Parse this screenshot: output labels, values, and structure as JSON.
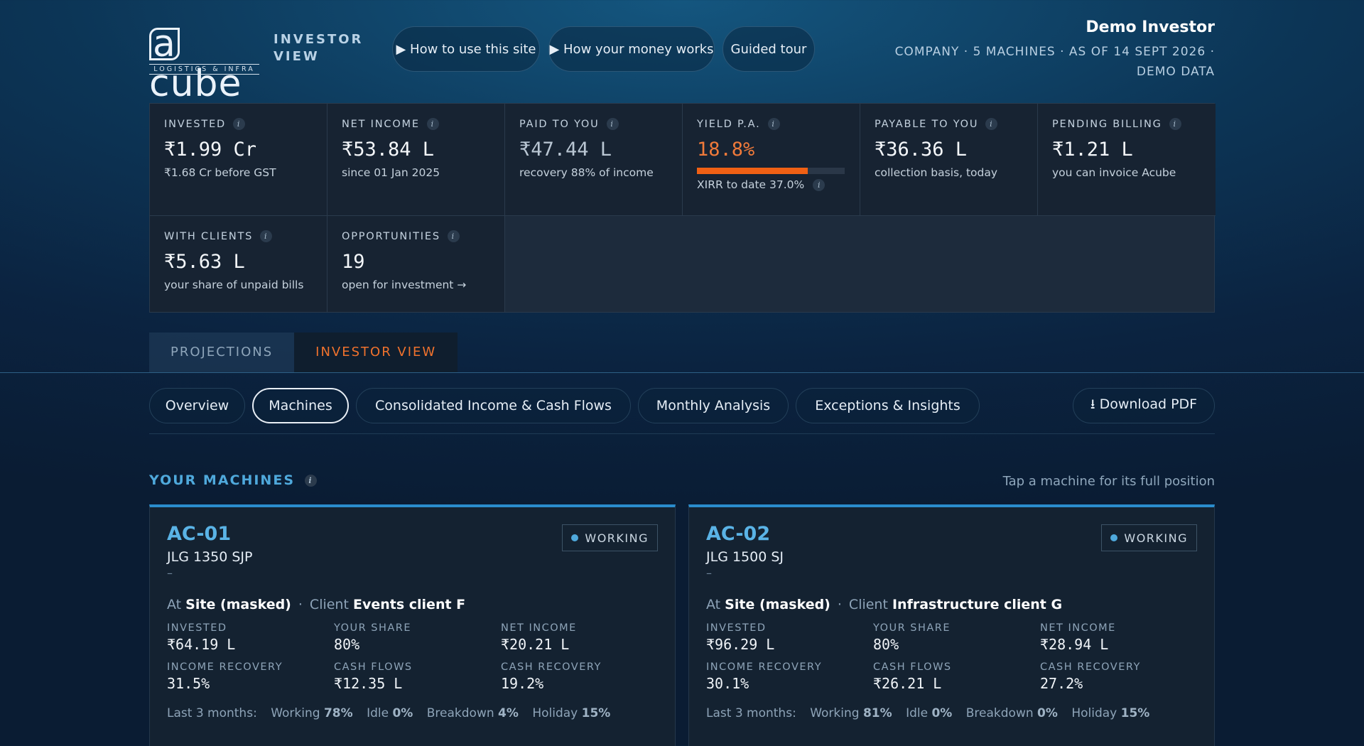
{
  "brand": {
    "logo_text": "acube",
    "logo_tagline": "LOGISTICS & INFRA",
    "subtitle": "INVESTOR VIEW"
  },
  "header_buttons": [
    {
      "label": "▶ How to use this site"
    },
    {
      "label": "▶ How your money works"
    },
    {
      "label": "Guided tour"
    }
  ],
  "investor": {
    "name": "Demo Investor",
    "meta": "COMPANY · 5 MACHINES · AS OF 14 SEPT 2026 · DEMO DATA"
  },
  "stats": {
    "invested": {
      "label": "INVESTED",
      "value": "₹1.99 Cr",
      "sub": "₹1.68 Cr before GST"
    },
    "net_income": {
      "label": "NET INCOME",
      "value": "₹53.84 L",
      "sub": "since 01 Jan 2025"
    },
    "paid": {
      "label": "PAID TO YOU",
      "value": "₹47.44 L",
      "sub": "recovery 88% of income"
    },
    "yield": {
      "label": "YIELD P.A.",
      "value": "18.8%",
      "progress": 0.75,
      "xirr": "XIRR to date 37.0%"
    },
    "payable": {
      "label": "PAYABLE TO YOU",
      "value": "₹36.36 L",
      "sub": "collection basis, today"
    },
    "pending": {
      "label": "PENDING BILLING",
      "value": "₹1.21 L",
      "sub": "you can invoice Acube"
    },
    "with_clients": {
      "label": "WITH CLIENTS",
      "value": "₹5.63 L",
      "sub": "your share of unpaid bills"
    },
    "opportunities": {
      "label": "OPPORTUNITIES",
      "value": "19",
      "sub": "open for investment →"
    }
  },
  "top_tabs": [
    {
      "label": "PROJECTIONS"
    },
    {
      "label": "INVESTOR VIEW",
      "active": true
    }
  ],
  "sub_tabs": [
    {
      "label": "Overview"
    },
    {
      "label": "Machines",
      "active": true
    },
    {
      "label": "Consolidated Income & Cash Flows"
    },
    {
      "label": "Monthly Analysis"
    },
    {
      "label": "Exceptions & Insights"
    }
  ],
  "download_label": "⭳ Download PDF",
  "machines_section": {
    "title": "YOUR MACHINES",
    "hint": "Tap a machine for its full position"
  },
  "machines": [
    {
      "code": "AC-01",
      "model": "JLG 1350 SJP",
      "dash": "–",
      "status": "WORKING",
      "at_label": "At",
      "site": "Site (masked)",
      "client_label": "Client",
      "client": "Events client F",
      "metrics": [
        {
          "label": "INVESTED",
          "value": "₹64.19 L"
        },
        {
          "label": "YOUR SHARE",
          "value": "80%"
        },
        {
          "label": "NET INCOME",
          "value": "₹20.21 L"
        },
        {
          "label": "INCOME RECOVERY",
          "value": "31.5%"
        },
        {
          "label": "CASH FLOWS",
          "value": "₹12.35 L"
        },
        {
          "label": "CASH RECOVERY",
          "value": "19.2%"
        }
      ],
      "last3_label": "Last 3 months:",
      "last3": [
        {
          "k": "Working",
          "v": "78%"
        },
        {
          "k": "Idle",
          "v": "0%"
        },
        {
          "k": "Breakdown",
          "v": "4%"
        },
        {
          "k": "Holiday",
          "v": "15%"
        }
      ]
    },
    {
      "code": "AC-02",
      "model": "JLG 1500 SJ",
      "dash": "–",
      "status": "WORKING",
      "at_label": "At",
      "site": "Site (masked)",
      "client_label": "Client",
      "client": "Infrastructure client G",
      "metrics": [
        {
          "label": "INVESTED",
          "value": "₹96.29 L"
        },
        {
          "label": "YOUR SHARE",
          "value": "80%"
        },
        {
          "label": "NET INCOME",
          "value": "₹28.94 L"
        },
        {
          "label": "INCOME RECOVERY",
          "value": "30.1%"
        },
        {
          "label": "CASH FLOWS",
          "value": "₹26.21 L"
        },
        {
          "label": "CASH RECOVERY",
          "value": "27.2%"
        }
      ],
      "last3_label": "Last 3 months:",
      "last3": [
        {
          "k": "Working",
          "v": "81%"
        },
        {
          "k": "Idle",
          "v": "0%"
        },
        {
          "k": "Breakdown",
          "v": "0%"
        },
        {
          "k": "Holiday",
          "v": "15%"
        }
      ]
    }
  ],
  "colors": {
    "accent_orange": "#f06014",
    "accent_blue": "#4fa9dc",
    "card_bg": "#172332"
  }
}
